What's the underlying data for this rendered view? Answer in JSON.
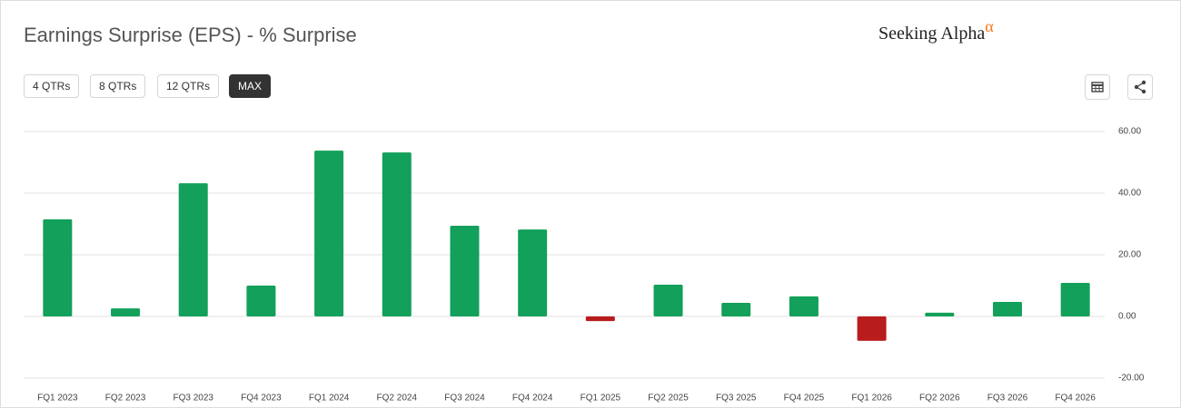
{
  "chart_data": {
    "type": "bar",
    "title": "Earnings Surprise (EPS) - % Surprise",
    "categories": [
      "FQ1 2023",
      "FQ2 2023",
      "FQ3 2023",
      "FQ4 2023",
      "FQ1 2024",
      "FQ2 2024",
      "FQ3 2024",
      "FQ4 2024",
      "FQ1 2025",
      "FQ2 2025",
      "FQ3 2025",
      "FQ4 2025",
      "FQ1 2026",
      "FQ2 2026",
      "FQ3 2026",
      "FQ4 2026"
    ],
    "values": [
      31.5,
      2.6,
      43.2,
      10.0,
      53.8,
      53.2,
      29.4,
      28.2,
      -1.5,
      10.3,
      4.4,
      6.5,
      -7.9,
      1.2,
      4.7,
      10.9
    ],
    "color": "#12a05a",
    "negative_color": "#b91c1c",
    "ylim": [
      -20,
      60
    ],
    "yticks": [
      {
        "value": -20,
        "label": "-20.00"
      },
      {
        "value": 0,
        "label": "0.00"
      },
      {
        "value": 20,
        "label": "20.00"
      },
      {
        "value": 40,
        "label": "40.00"
      },
      {
        "value": 60,
        "label": "60.00"
      }
    ],
    "grid": true
  },
  "brand": {
    "name": "Seeking Alpha",
    "mark": "α"
  },
  "controls": {
    "ranges": [
      "4 QTRs",
      "8 QTRs",
      "12 QTRs",
      "MAX"
    ]
  }
}
